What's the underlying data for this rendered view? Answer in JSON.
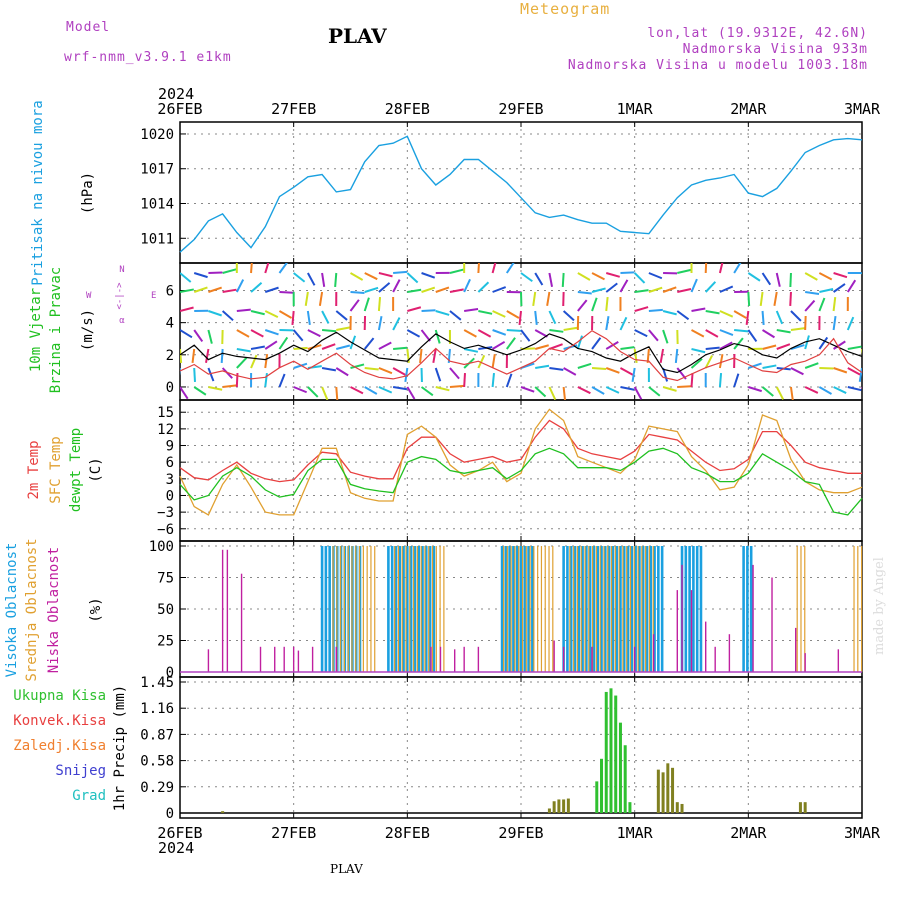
{
  "header": {
    "model_label": "Model",
    "model_name": "wrf-nmm_v3.9.1 e1km",
    "title": "PLAV",
    "subtitle": "Meteogram",
    "coords": "lon,lat (19.9312E, 42.6N)",
    "elevation": "Nadmorska Visina 933m",
    "model_elevation": "Nadmorska Visina u modelu 1003.18m"
  },
  "footer": {
    "station": "PLAV",
    "credit": "made by Angel"
  },
  "time_axis": {
    "year": "2024",
    "labels": [
      "26FEB",
      "27FEB",
      "28FEB",
      "29FEB",
      "1MAR",
      "2MAR",
      "3MAR"
    ],
    "range_hours": [
      0,
      144
    ]
  },
  "colors": {
    "pressure": "#1aa0e0",
    "wind_speed": "#000000",
    "wind_gust": "#e04040",
    "temp2m": "#e84040",
    "sfc_temp": "#e0a030",
    "dewpt": "#20c020",
    "cloud_high": "#1aa0e0",
    "cloud_mid": "#e0a030",
    "cloud_low": "#c020a0",
    "precip_total": "#30c030",
    "precip_conv": "#e84040",
    "precip_frz": "#f08030",
    "snow": "#4040d0",
    "hail": "#20c0c0",
    "precip_olive": "#808020"
  },
  "chart_data": [
    {
      "type": "line",
      "panel": "pressure",
      "ylabel": [
        "Pritisak na nivou mora",
        "(hPa)"
      ],
      "yticks": [
        1011,
        1014,
        1017,
        1020
      ],
      "ylim": [
        1009.3,
        1020.6
      ],
      "grid": true,
      "series": [
        {
          "x": [
            0,
            3,
            6,
            9,
            12,
            15,
            18,
            21,
            24,
            27,
            30,
            33,
            36,
            39,
            42,
            45,
            48,
            51,
            54,
            57,
            60,
            63,
            66,
            69,
            72,
            75,
            78,
            81,
            84,
            87,
            90,
            93,
            96,
            99,
            102,
            105,
            108,
            111,
            114,
            117,
            120,
            123,
            126,
            129,
            132,
            135,
            138,
            141,
            144
          ],
          "values": [
            1009.8,
            1010.9,
            1012.5,
            1013.1,
            1011.5,
            1010.2,
            1012.0,
            1014.6,
            1015.4,
            1016.3,
            1016.5,
            1015.0,
            1015.2,
            1017.6,
            1019.0,
            1019.2,
            1019.8,
            1017.0,
            1015.6,
            1016.5,
            1017.8,
            1017.8,
            1016.8,
            1015.8,
            1014.5,
            1013.2,
            1012.8,
            1013.0,
            1012.6,
            1012.3,
            1012.3,
            1011.6,
            1011.5,
            1011.4,
            1013.0,
            1014.5,
            1015.6,
            1016.0,
            1016.2,
            1016.5,
            1014.9,
            1014.6,
            1015.3,
            1016.8,
            1018.4,
            1019.0,
            1019.5,
            1019.6,
            1019.5
          ]
        }
      ]
    },
    {
      "type": "line",
      "panel": "wind",
      "ylabel": [
        "10m Vjetar",
        "Brzina i Pravac",
        "(m/s)"
      ],
      "compass": [
        "N",
        "W",
        "<-|->",
        "E",
        "α"
      ],
      "yticks": [
        0,
        2,
        4,
        6
      ],
      "ylim": [
        -0.5,
        7.4
      ],
      "series": [
        {
          "values": [
            2.0,
            2.6,
            1.7,
            2.1,
            1.9,
            1.8,
            1.7,
            2.1,
            2.6,
            2.2,
            2.9,
            3.4,
            2.8,
            2.3,
            1.8,
            1.7,
            1.6,
            2.5,
            3.3,
            2.8,
            2.4,
            2.6,
            2.3,
            2.0,
            2.3,
            2.7,
            3.3,
            3.0,
            2.4,
            2.2,
            1.8,
            1.6,
            2.1,
            2.5,
            1.1,
            0.9,
            1.4,
            2.0,
            2.3,
            2.7,
            2.5,
            2.0,
            1.8,
            2.4,
            2.8,
            3.0,
            2.6,
            2.2,
            1.9
          ]
        },
        {
          "values": [
            1.0,
            1.4,
            0.8,
            1.0,
            0.7,
            0.5,
            0.6,
            1.2,
            1.6,
            1.1,
            1.6,
            2.1,
            1.4,
            0.9,
            0.6,
            0.5,
            0.7,
            1.5,
            2.4,
            1.6,
            1.4,
            1.6,
            1.2,
            0.8,
            1.2,
            1.6,
            2.4,
            2.2,
            2.8,
            3.5,
            3.0,
            2.2,
            1.7,
            1.6,
            0.6,
            0.4,
            0.8,
            1.2,
            1.5,
            1.8,
            1.4,
            1.0,
            0.9,
            1.4,
            1.6,
            2.0,
            3.0,
            1.5,
            0.9
          ]
        }
      ]
    },
    {
      "type": "line",
      "panel": "temperature",
      "ylabel": [
        "2m Temp",
        "SFC Temp",
        "dewpt Temp",
        "(C)"
      ],
      "yticks": [
        -6,
        -3,
        0,
        3,
        6,
        9,
        12,
        15
      ],
      "ylim": [
        -7.3,
        16.3
      ],
      "series": [
        {
          "name": "2m Temp",
          "values": [
            5.0,
            3.2,
            2.8,
            4.5,
            6.0,
            4.0,
            3.0,
            2.5,
            2.8,
            5.5,
            7.8,
            7.5,
            4.2,
            3.5,
            3.0,
            3.0,
            8.5,
            10.5,
            10.5,
            7.5,
            6.0,
            6.5,
            7.0,
            6.0,
            6.5,
            10.5,
            13.5,
            12.0,
            8.5,
            7.5,
            7.0,
            6.5,
            8.0,
            11.0,
            10.5,
            10.0,
            8.0,
            6.0,
            4.5,
            4.8,
            6.5,
            11.5,
            11.5,
            9.0,
            6.0,
            5.0,
            4.5,
            4.0,
            4.0
          ]
        },
        {
          "name": "SFC Temp",
          "values": [
            3.5,
            -2.0,
            -3.5,
            2.0,
            5.5,
            1.5,
            -3.0,
            -3.5,
            -3.5,
            2.5,
            8.5,
            8.5,
            0.5,
            -0.5,
            -1.0,
            -1.0,
            11.0,
            12.5,
            10.5,
            5.5,
            3.5,
            4.5,
            6.0,
            2.5,
            4.0,
            12.0,
            15.5,
            13.5,
            7.0,
            6.0,
            5.0,
            4.0,
            6.5,
            12.5,
            12.0,
            11.5,
            7.0,
            4.5,
            1.0,
            1.5,
            5.5,
            14.5,
            13.5,
            6.5,
            2.5,
            1.0,
            0.5,
            0.5,
            1.5
          ]
        },
        {
          "name": "dewpt Temp",
          "values": [
            2.0,
            -0.8,
            0.0,
            3.5,
            5.0,
            3.5,
            1.0,
            -0.3,
            0.2,
            4.5,
            6.5,
            6.5,
            2.0,
            1.2,
            0.8,
            0.5,
            6.0,
            7.0,
            6.5,
            4.5,
            4.0,
            4.5,
            5.0,
            3.0,
            4.5,
            7.5,
            8.5,
            7.5,
            5.0,
            5.0,
            5.0,
            4.5,
            6.0,
            8.0,
            8.5,
            7.5,
            5.0,
            4.0,
            2.5,
            2.5,
            4.0,
            7.5,
            6.0,
            4.5,
            2.5,
            2.0,
            -3.0,
            -3.5,
            -0.5
          ]
        }
      ]
    },
    {
      "type": "bar",
      "panel": "cloud",
      "ylabel": [
        "Visoka Oblacnost",
        "Srednja Oblacnost",
        "Niska Oblacnost",
        "(%)"
      ],
      "yticks": [
        0,
        25,
        50,
        75,
        100
      ],
      "ylim": [
        0,
        100
      ],
      "series": [
        {
          "name": "Visoka Oblacnost",
          "spans": [
            [
              30,
              38
            ],
            [
              44,
              54
            ],
            [
              68,
              75
            ],
            [
              81,
              102
            ],
            [
              106,
              110
            ],
            [
              119,
              121
            ]
          ]
        },
        {
          "name": "Srednja Oblacnost",
          "spans": [
            [
              32,
              41
            ],
            [
              45,
              56
            ],
            [
              68,
              79
            ],
            [
              82,
              100
            ],
            [
              130,
              132
            ],
            [
              142,
              144
            ]
          ]
        },
        {
          "name": "Niska Oblacnost",
          "bars": [
            [
              6,
              18
            ],
            [
              9,
              97
            ],
            [
              10,
              97
            ],
            [
              13,
              78
            ],
            [
              17,
              20
            ],
            [
              20,
              20
            ],
            [
              22,
              20
            ],
            [
              24,
              20
            ],
            [
              25,
              17
            ],
            [
              28,
              20
            ],
            [
              33,
              20
            ],
            [
              53,
              20
            ],
            [
              55,
              20
            ],
            [
              58,
              18
            ],
            [
              60,
              20
            ],
            [
              63,
              20
            ],
            [
              79,
              25
            ],
            [
              81,
              20
            ],
            [
              87,
              20
            ],
            [
              96,
              20
            ],
            [
              100,
              30
            ],
            [
              105,
              65
            ],
            [
              106,
              85
            ],
            [
              108,
              65
            ],
            [
              111,
              40
            ],
            [
              113,
              20
            ],
            [
              116,
              30
            ],
            [
              121,
              85
            ],
            [
              125,
              75
            ],
            [
              130,
              35
            ],
            [
              132,
              15
            ],
            [
              139,
              18
            ]
          ]
        }
      ]
    },
    {
      "type": "bar",
      "panel": "precip",
      "ylabel": [
        "1hr Precip",
        "(mm)"
      ],
      "legend": [
        "Ukupna Kisa",
        "Konvek.Kisa",
        "Zaledj.Kisa",
        "Snijeg",
        "Grad"
      ],
      "yticks": [
        0,
        0.29,
        0.58,
        0.87,
        1.16,
        1.45
      ],
      "ylim": [
        0,
        1.45
      ],
      "values": [
        [
          9,
          0.02
        ],
        [
          78,
          0.05
        ],
        [
          79,
          0.13
        ],
        [
          80,
          0.15
        ],
        [
          81,
          0.15
        ],
        [
          82,
          0.16
        ],
        [
          88,
          0.35
        ],
        [
          89,
          0.6
        ],
        [
          90,
          1.34
        ],
        [
          91,
          1.38
        ],
        [
          92,
          1.3
        ],
        [
          93,
          1.0
        ],
        [
          94,
          0.75
        ],
        [
          95,
          0.12
        ],
        [
          101,
          0.48
        ],
        [
          102,
          0.45
        ],
        [
          103,
          0.55
        ],
        [
          104,
          0.5
        ],
        [
          105,
          0.12
        ],
        [
          106,
          0.1
        ],
        [
          131,
          0.12
        ],
        [
          132,
          0.12
        ]
      ]
    }
  ]
}
